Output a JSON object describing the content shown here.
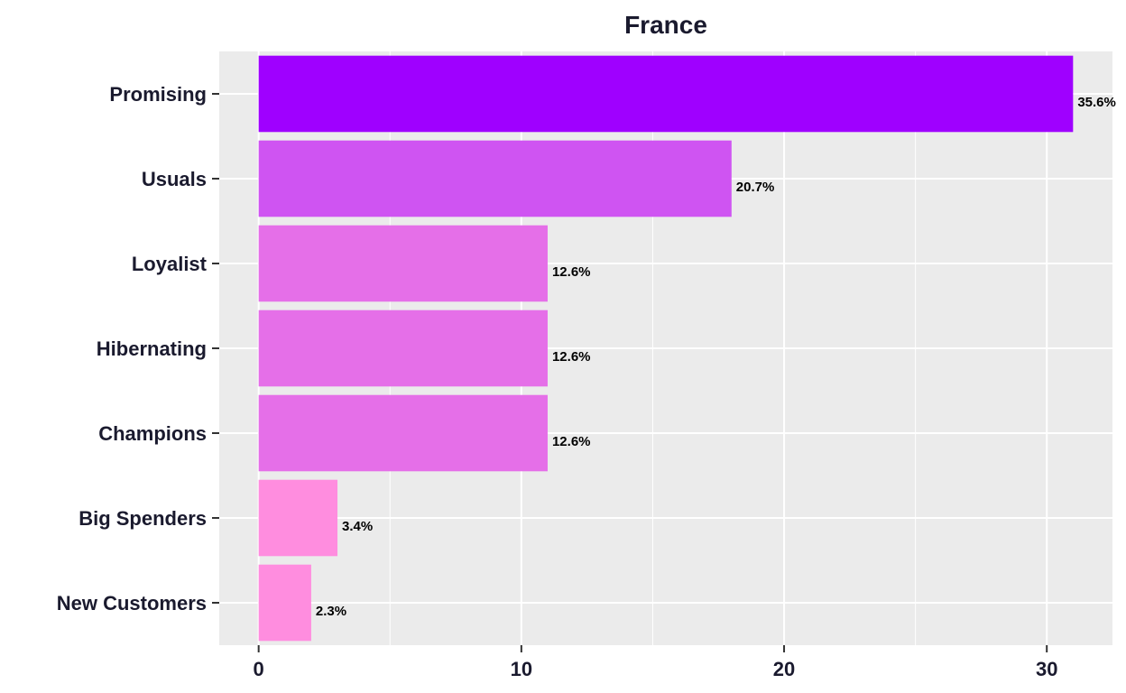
{
  "chart_data": {
    "type": "bar",
    "orientation": "horizontal",
    "title": "France",
    "xlabel": "",
    "ylabel": "",
    "categories": [
      "Promising",
      "Usuals",
      "Loyalist",
      "Hibernating",
      "Champions",
      "Big Spenders",
      "New Customers"
    ],
    "values": [
      31,
      18,
      11,
      11,
      11,
      3,
      2
    ],
    "data_labels": [
      "35.6%",
      "20.7%",
      "12.6%",
      "12.6%",
      "12.6%",
      "3.4%",
      "2.3%"
    ],
    "bar_colors": [
      "#9f00ff",
      "#cf54f2",
      "#e56fe8",
      "#e56fe8",
      "#e56fe8",
      "#ff8ddf",
      "#ff8ddf"
    ],
    "x_ticks": [
      0,
      10,
      20,
      30
    ],
    "xlim": [
      -1.5,
      32.5
    ],
    "grid": true,
    "legend": "none",
    "panel_background": "#ebebeb",
    "grid_color": "#ffffff"
  }
}
